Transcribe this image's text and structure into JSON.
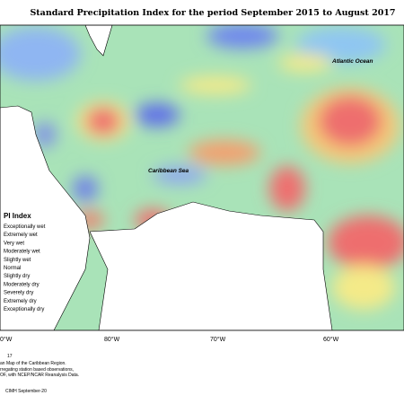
{
  "title": "Standard Precipitation Index for the period September 2015 to August 2017",
  "labels": {
    "ocean": "Atlantic Ocean",
    "sea": "Caribbean Sea"
  },
  "longitudes": [
    "0°W",
    "80°W",
    "70°W",
    "60°W"
  ],
  "legend": {
    "title": "PI Index",
    "items": [
      "Exceptionally wet",
      "Extremely wet",
      "Very wet",
      "Moderately wet",
      "Slightly wet",
      "Normal",
      "Slightly dry",
      "Moderately dry",
      "Severely dry",
      "Extremely dry",
      "Exceptionally dry"
    ]
  },
  "notes": [
    "17",
    "an Map of the Caribbean Region.",
    "rregating station based observations,",
    "OF, with NCEP/NCAR Reanalysis Data.",
    "CIMH September-20"
  ]
}
